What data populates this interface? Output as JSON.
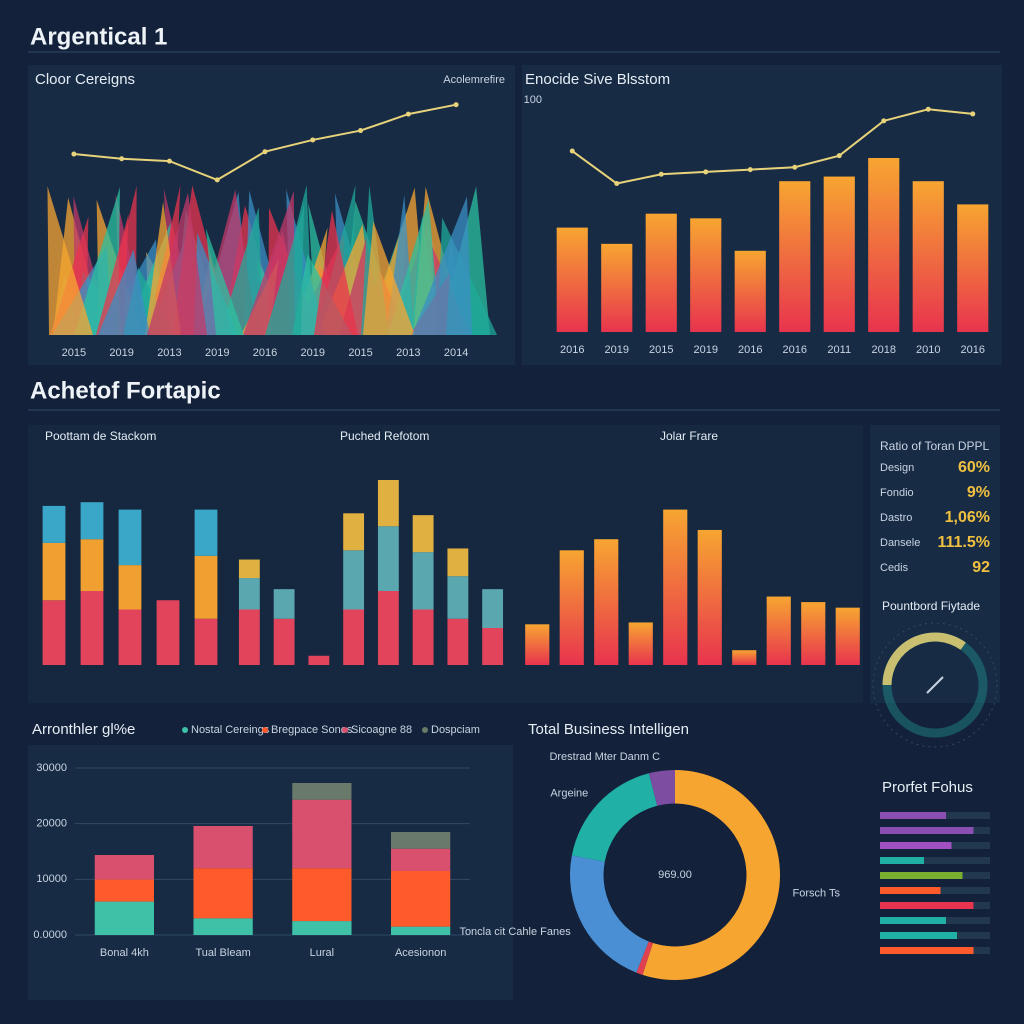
{
  "header": {
    "title": "Argentical 1"
  },
  "section_title": "Achetof Fortapic",
  "kpi": {
    "title": "Ratio of Toran DPPL",
    "rows": [
      {
        "label": "Design",
        "value": "60%"
      },
      {
        "label": "Fondio",
        "value": "9%"
      },
      {
        "label": "Dastro",
        "value": "1,06%"
      },
      {
        "label": "Dansele",
        "value": "111.5%"
      },
      {
        "label": "Cedis",
        "value": "92"
      }
    ]
  },
  "chart_data": [
    {
      "type": "line",
      "title": "Cloor Cereigns",
      "legend": "Acolemrefire",
      "color": "#e8d27a",
      "categories": [
        "2015",
        "2019",
        "2013",
        "2019",
        "2016",
        "2019",
        "2015",
        "2013",
        "2014"
      ],
      "values": [
        77,
        75,
        74,
        66,
        78,
        83,
        87,
        94,
        98
      ],
      "ylim": [
        0,
        100
      ]
    },
    {
      "type": "bar",
      "title": "Enocide Sive Blsstom",
      "categories": [
        "2016",
        "2019",
        "2015",
        "2019",
        "2016",
        "2016",
        "2011",
        "2018",
        "2010",
        "2016"
      ],
      "ylim": [
        0,
        100
      ],
      "yticks": [
        100
      ],
      "series": [
        {
          "type": "bar",
          "colors": [
            "#f7a531",
            "#e8344e"
          ],
          "values": [
            45,
            38,
            51,
            49,
            35,
            65,
            67,
            75,
            65,
            55
          ]
        },
        {
          "type": "line",
          "colors": [
            "#e8d27a"
          ],
          "values": [
            78,
            64,
            68,
            69,
            70,
            71,
            76,
            91,
            96,
            94
          ]
        }
      ]
    },
    {
      "type": "stacked_bar",
      "title": "Poottam de Stackom",
      "ylim": [
        0,
        100
      ],
      "categories": [
        null,
        null,
        null,
        null,
        null
      ],
      "series": [
        {
          "color": "#e2445c",
          "values": [
            35,
            40,
            30,
            35,
            25
          ]
        },
        {
          "color": "#f0a030",
          "values": [
            31,
            28,
            24,
            0,
            34
          ]
        },
        {
          "color": "#3aa7c8",
          "values": [
            20,
            20,
            30,
            0,
            25
          ]
        }
      ]
    },
    {
      "type": "stacked_bar",
      "title": "Puched Refotom",
      "ylim": [
        0,
        100
      ],
      "categories": [
        null,
        null,
        null,
        null,
        null,
        null,
        null,
        null
      ],
      "series": [
        {
          "color": "#e2445c",
          "values": [
            30,
            25,
            5,
            30,
            40,
            30,
            25,
            20
          ]
        },
        {
          "color": "#5aa7b0",
          "values": [
            17,
            16,
            0,
            32,
            35,
            31,
            23,
            21
          ]
        },
        {
          "color": "#e0b040",
          "values": [
            10,
            0,
            0,
            20,
            25,
            20,
            15,
            0
          ]
        }
      ]
    },
    {
      "type": "bar",
      "title": "Jolar Frare",
      "ylim": [
        0,
        100
      ],
      "categories": [
        null,
        null,
        null,
        null,
        null,
        null,
        null,
        null,
        null,
        null
      ],
      "series": [
        {
          "type": "bar",
          "colors": [
            "#f7a531",
            "#e8344e"
          ],
          "values": [
            22,
            62,
            68,
            23,
            84,
            73,
            8,
            37,
            34,
            31
          ]
        }
      ]
    },
    {
      "type": "gauge",
      "title": "Pountbord Fiytade",
      "value": 35,
      "ylim": [
        0,
        100
      ],
      "colors": [
        "#c8c070",
        "#21b0a6"
      ]
    },
    {
      "type": "stacked_bar",
      "title": "Arronthler gl%e",
      "ylim": [
        0,
        30000
      ],
      "yticks": [
        {
          "value": 0,
          "label": "0.0000"
        },
        10000,
        20000,
        30000
      ],
      "grid": true,
      "categories": [
        "Bonal 4kh",
        "Tual Bleam",
        "Lural",
        "Acesionon"
      ],
      "series": [
        {
          "name": "Nostal Cereings",
          "color": "#3fc1a8",
          "values": [
            6000,
            3000,
            2500,
            1500
          ]
        },
        {
          "name": "Bregpace Sones",
          "color": "#ff5a2c",
          "values": [
            4000,
            9000,
            9500,
            10000
          ]
        },
        {
          "name": "Sicoagne 88",
          "color": "#d9506e",
          "values": [
            4371,
            7581,
            12305,
            4003
          ]
        },
        {
          "name": "Dospciam",
          "color": "#6a7a6a",
          "values": [
            0,
            0,
            3000,
            3000
          ]
        }
      ]
    },
    {
      "type": "pie",
      "title": "Total Business Intelligen",
      "center_label": "969.00",
      "categories": [
        "Forsch Ts",
        null,
        "Toncla cit Cahle Fanes",
        "Argeine",
        "Drestrad Mter Danm C"
      ],
      "values": [
        55,
        1,
        22,
        18,
        4
      ],
      "colors": [
        "#f7a531",
        "#e04050",
        "#4a8fd4",
        "#21b0a6",
        "#7c4da0"
      ]
    },
    {
      "type": "hbar",
      "title": "Prorfet Fohus",
      "xlim": [
        0,
        100
      ],
      "values": [
        60,
        85,
        65,
        40,
        75,
        55,
        85,
        60,
        70,
        85
      ],
      "colors": [
        "#8a4fb0",
        "#8a4fb0",
        "#a050c0",
        "#21b0a6",
        "#7ab030",
        "#ff5a2c",
        "#e8344e",
        "#21b0a6",
        "#21b0a6",
        "#ff5a2c"
      ]
    }
  ]
}
